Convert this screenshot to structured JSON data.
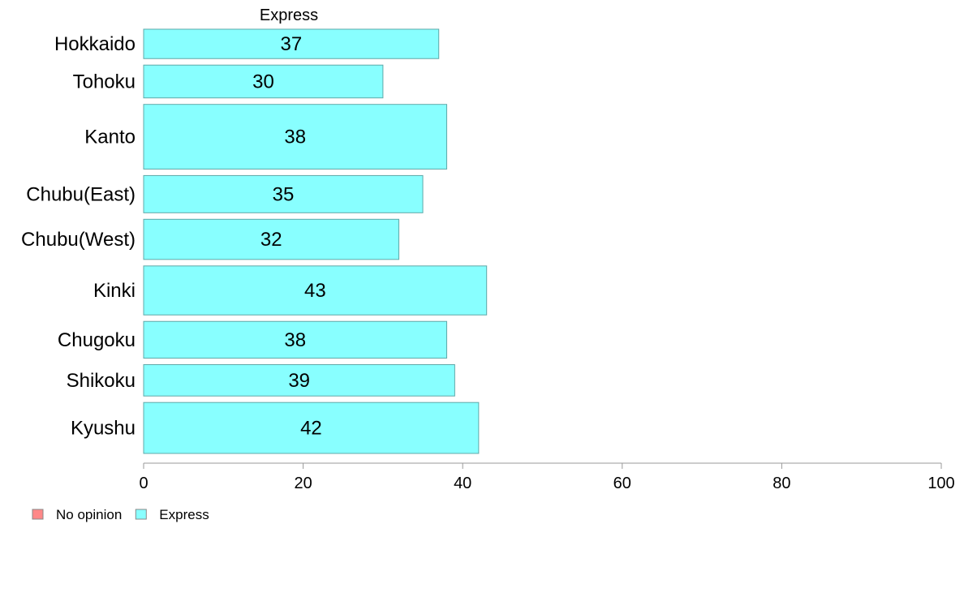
{
  "chart_data": {
    "type": "bar",
    "orientation": "horizontal",
    "stacked": true,
    "series_title": "Express",
    "categories": [
      "Hokkaido",
      "Tohoku",
      "Kanto",
      "Chubu(East)",
      "Chubu(West)",
      "Kinki",
      "Chugoku",
      "Shikoku",
      "Kyushu"
    ],
    "category_weights": [
      0.6,
      0.67,
      1.32,
      0.76,
      0.82,
      1.0,
      0.75,
      0.64,
      1.04
    ],
    "series": [
      {
        "name": "Express",
        "values": [
          37,
          30,
          38,
          35,
          32,
          43,
          38,
          39,
          42
        ],
        "color": "#88ffff"
      }
    ],
    "xlim": [
      0,
      100
    ],
    "xticks": [
      0,
      20,
      40,
      60,
      80,
      100
    ],
    "grid": false,
    "legend": {
      "position": "bottom-left",
      "entries": [
        {
          "label": "No opinion",
          "color": "#ff8888"
        },
        {
          "label": "Express",
          "color": "#88ffff"
        }
      ]
    }
  }
}
